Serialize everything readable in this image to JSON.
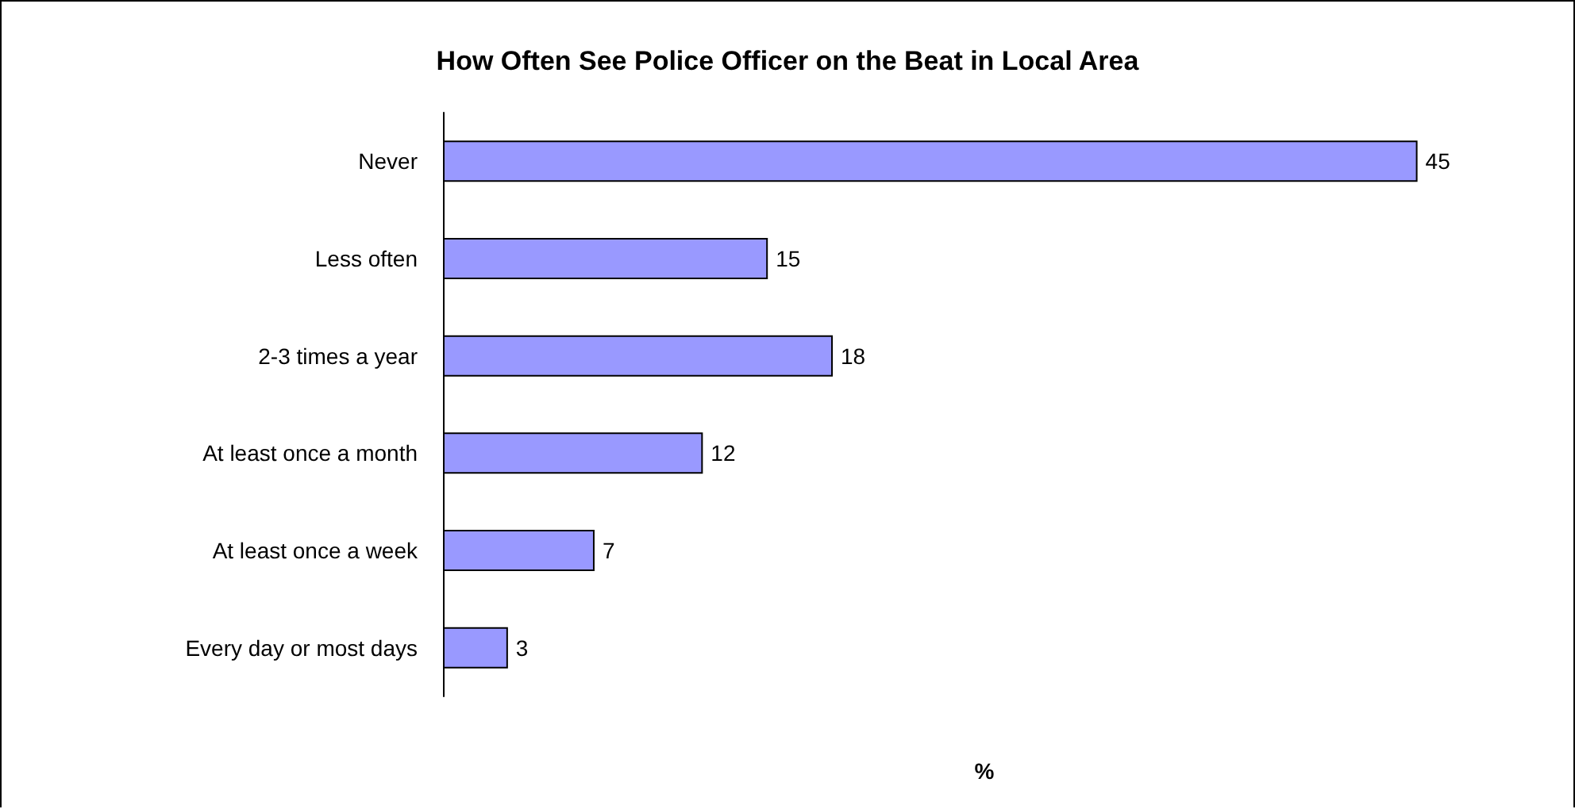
{
  "chart_data": {
    "type": "bar",
    "orientation": "horizontal",
    "title": "How Often See Police Officer on the Beat in Local Area",
    "xlabel": "%",
    "categories": [
      "Never",
      "Less often",
      "2-3 times a year",
      "At least once a month",
      "At least once a week",
      "Every day or most days"
    ],
    "values": [
      45,
      15,
      18,
      12,
      7,
      3
    ],
    "color": "#9999ff",
    "data_labels": true,
    "grid": false
  }
}
